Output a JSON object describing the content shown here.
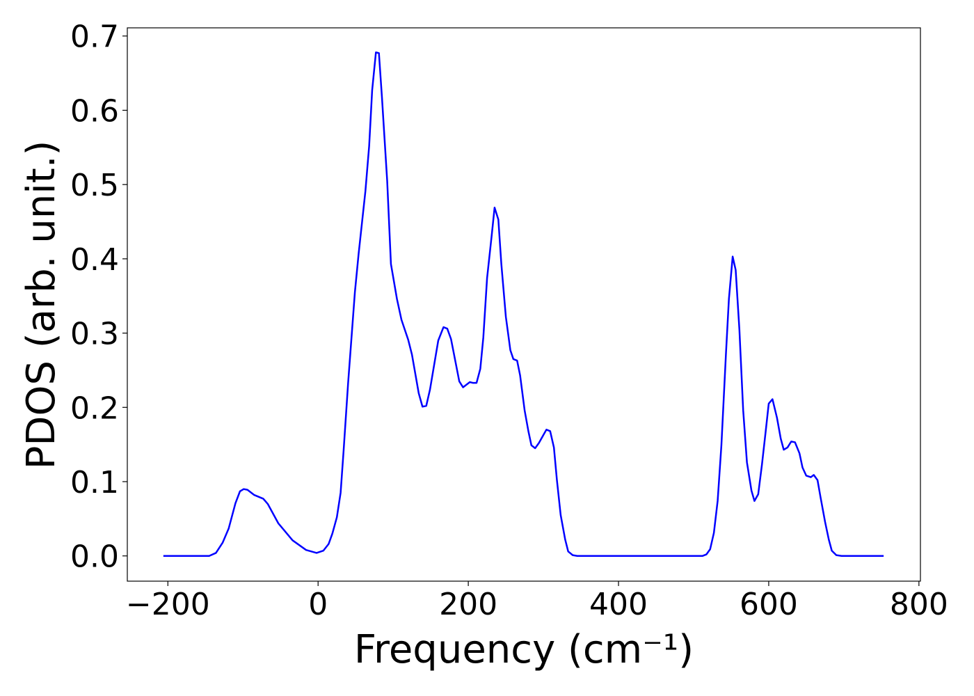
{
  "chart_data": {
    "type": "line",
    "x_label": "Frequency (cm⁻¹)",
    "y_label": "PDOS (arb. unit.)",
    "x": [
      -206,
      -145,
      -136,
      -127,
      -119,
      -110,
      -104,
      -99,
      -94,
      -85,
      -73,
      -67,
      -53,
      -34,
      -16,
      -2,
      7,
      14,
      19,
      25,
      30,
      34,
      40,
      49,
      54,
      63,
      68,
      72,
      77,
      81,
      85,
      92,
      97,
      105,
      111,
      120,
      125,
      134,
      139,
      144,
      149,
      160,
      167,
      172,
      177,
      183,
      188,
      193,
      202,
      206,
      211,
      216,
      220,
      225,
      231,
      235,
      240,
      244,
      250,
      256,
      260,
      265,
      269,
      275,
      280,
      284,
      289,
      294,
      299,
      304,
      309,
      314,
      318,
      323,
      329,
      333,
      339,
      345,
      512,
      517,
      522,
      527,
      532,
      537,
      543,
      547,
      552,
      556,
      561,
      566,
      571,
      577,
      581,
      586,
      591,
      596,
      600,
      605,
      611,
      616,
      620,
      625,
      630,
      635,
      641,
      645,
      650,
      656,
      660,
      665,
      669,
      675,
      680,
      684,
      690,
      697,
      753
    ],
    "series": [
      {
        "color": "#0000ff",
        "values": [
          0,
          0,
          0.004,
          0.018,
          0.037,
          0.071,
          0.087,
          0.09,
          0.089,
          0.082,
          0.077,
          0.07,
          0.044,
          0.021,
          0.008,
          0.004,
          0.007,
          0.016,
          0.03,
          0.052,
          0.085,
          0.142,
          0.233,
          0.355,
          0.407,
          0.491,
          0.552,
          0.627,
          0.678,
          0.677,
          0.618,
          0.505,
          0.393,
          0.346,
          0.318,
          0.291,
          0.271,
          0.219,
          0.201,
          0.202,
          0.224,
          0.29,
          0.308,
          0.306,
          0.292,
          0.261,
          0.235,
          0.227,
          0.234,
          0.233,
          0.233,
          0.252,
          0.294,
          0.374,
          0.43,
          0.469,
          0.453,
          0.393,
          0.322,
          0.277,
          0.265,
          0.263,
          0.243,
          0.196,
          0.168,
          0.149,
          0.145,
          0.152,
          0.161,
          0.17,
          0.168,
          0.146,
          0.102,
          0.055,
          0.022,
          0.006,
          0.001,
          0,
          0,
          0.002,
          0.009,
          0.031,
          0.074,
          0.149,
          0.271,
          0.346,
          0.403,
          0.385,
          0.304,
          0.196,
          0.126,
          0.088,
          0.074,
          0.083,
          0.123,
          0.168,
          0.205,
          0.211,
          0.186,
          0.158,
          0.143,
          0.146,
          0.154,
          0.153,
          0.138,
          0.119,
          0.108,
          0.106,
          0.109,
          0.102,
          0.079,
          0.046,
          0.022,
          0.007,
          0.001,
          0,
          0
        ]
      }
    ],
    "xlim": [
      -254,
      802
    ],
    "ylim": [
      -0.034,
      0.711
    ],
    "xticks": [
      {
        "value": -200,
        "label": "−200"
      },
      0,
      200,
      400,
      600,
      800
    ],
    "yticks": [
      {
        "value": 0,
        "label": "0.0"
      },
      0.1,
      0.2,
      0.3,
      0.4,
      0.5,
      0.6,
      0.7
    ]
  }
}
